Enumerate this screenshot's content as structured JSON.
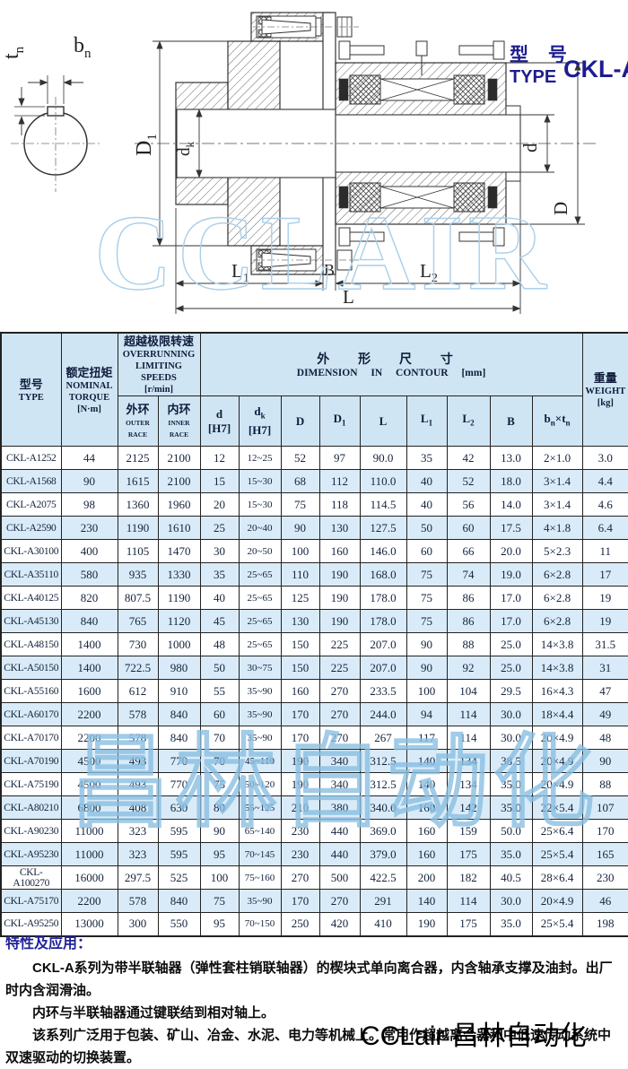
{
  "title": {
    "zh": "型 号",
    "en": "TYPE",
    "model": "CKL-A"
  },
  "drawing": {
    "watermark": "CCLAIR",
    "labels": {
      "bn": {
        "main": "b",
        "sub": "n"
      },
      "tn": {
        "main": "t",
        "sub": "n"
      },
      "D1": {
        "main": "D",
        "sub": "1"
      },
      "dk": {
        "main": "d",
        "sub": "k"
      },
      "d": {
        "main": "d"
      },
      "D": {
        "main": "D"
      },
      "L1": {
        "main": "L",
        "sub": "1"
      },
      "B": {
        "main": "B"
      },
      "L2": {
        "main": "L",
        "sub": "2"
      },
      "L": {
        "main": "L"
      }
    }
  },
  "table": {
    "header": {
      "type_zh": "型号",
      "type_en": "TYPE",
      "torque_zh": "额定扭矩",
      "torque_en1": "NOMINAL",
      "torque_en2": "TORQUE",
      "torque_unit": "[N·m]",
      "speeds_zh": "超越极限转速",
      "speeds_en1": "OVERRUNNING",
      "speeds_en2": "LIMITING SPEEDS",
      "speeds_unit": "[r/min]",
      "outer_zh": "外环",
      "outer_en": "OUTER RACE",
      "inner_zh": "内环",
      "inner_en": "INNER RACE",
      "dim_zh": "外 形 尺 寸",
      "dim_en": "DIMENSION IN CONTOUR [mm]",
      "weight_zh": "重量",
      "weight_en": "WEIGHT",
      "weight_unit": "[kg]",
      "sub": {
        "d": {
          "main": "d",
          "unit": "[H7]"
        },
        "dk": {
          "main": "d",
          "sub": "k",
          "unit": "[H7]"
        },
        "D": {
          "main": "D"
        },
        "D1": {
          "main": "D",
          "sub": "1"
        },
        "L": {
          "main": "L"
        },
        "L1": {
          "main": "L",
          "sub": "1"
        },
        "L2": {
          "main": "L",
          "sub": "2"
        },
        "B": {
          "main": "B"
        },
        "bntn": {
          "b": "b",
          "bs": "n",
          "x": "×",
          "t": "t",
          "ts": "n"
        }
      }
    },
    "rows": [
      [
        "CKL-A1252",
        "44",
        "2125",
        "2100",
        "12",
        "12~25",
        "52",
        "97",
        "90.0",
        "35",
        "42",
        "13.0",
        "2×1.0",
        "3.0"
      ],
      [
        "CKL-A1568",
        "90",
        "1615",
        "2100",
        "15",
        "15~30",
        "68",
        "112",
        "110.0",
        "40",
        "52",
        "18.0",
        "3×1.4",
        "4.4"
      ],
      [
        "CKL-A2075",
        "98",
        "1360",
        "1960",
        "20",
        "15~30",
        "75",
        "118",
        "114.5",
        "40",
        "56",
        "14.0",
        "3×1.4",
        "4.6"
      ],
      [
        "CKL-A2590",
        "230",
        "1190",
        "1610",
        "25",
        "20~40",
        "90",
        "130",
        "127.5",
        "50",
        "60",
        "17.5",
        "4×1.8",
        "6.4"
      ],
      [
        "CKL-A30100",
        "400",
        "1105",
        "1470",
        "30",
        "20~50",
        "100",
        "160",
        "146.0",
        "60",
        "66",
        "20.0",
        "5×2.3",
        "11"
      ],
      [
        "CKL-A35110",
        "580",
        "935",
        "1330",
        "35",
        "25~65",
        "110",
        "190",
        "168.0",
        "75",
        "74",
        "19.0",
        "6×2.8",
        "17"
      ],
      [
        "CKL-A40125",
        "820",
        "807.5",
        "1190",
        "40",
        "25~65",
        "125",
        "190",
        "178.0",
        "75",
        "86",
        "17.0",
        "6×2.8",
        "19"
      ],
      [
        "CKL-A45130",
        "840",
        "765",
        "1120",
        "45",
        "25~65",
        "130",
        "190",
        "178.0",
        "75",
        "86",
        "17.0",
        "6×2.8",
        "19"
      ],
      [
        "CKL-A48150",
        "1400",
        "730",
        "1000",
        "48",
        "25~65",
        "150",
        "225",
        "207.0",
        "90",
        "88",
        "25.0",
        "14×3.8",
        "31.5"
      ],
      [
        "CKL-A50150",
        "1400",
        "722.5",
        "980",
        "50",
        "30~75",
        "150",
        "225",
        "207.0",
        "90",
        "92",
        "25.0",
        "14×3.8",
        "31"
      ],
      [
        "CKL-A55160",
        "1600",
        "612",
        "910",
        "55",
        "35~90",
        "160",
        "270",
        "233.5",
        "100",
        "104",
        "29.5",
        "16×4.3",
        "47"
      ],
      [
        "CKL-A60170",
        "2200",
        "578",
        "840",
        "60",
        "35~90",
        "170",
        "270",
        "244.0",
        "94",
        "114",
        "30.0",
        "18×4.4",
        "49"
      ],
      [
        "CKL-A70170",
        "2200",
        "578",
        "840",
        "70",
        "35~90",
        "170",
        "270",
        "267",
        "117",
        "114",
        "30.0",
        "20×4.9",
        "48"
      ],
      [
        "CKL-A70190",
        "4500",
        "493",
        "770",
        "70",
        "45~110",
        "190",
        "340",
        "312.5",
        "140",
        "134",
        "38.5",
        "20×4.9",
        "90"
      ],
      [
        "CKL-A75190",
        "4500",
        "493",
        "770",
        "75",
        "50~120",
        "190",
        "340",
        "312.5",
        "140",
        "134",
        "35.0",
        "20×4.9",
        "88"
      ],
      [
        "CKL-A80210",
        "6800",
        "408",
        "630",
        "80",
        "55~125",
        "210",
        "380",
        "340.0",
        "160",
        "142",
        "35.0",
        "22×5.4",
        "107"
      ],
      [
        "CKL-A90230",
        "11000",
        "323",
        "595",
        "90",
        "65~140",
        "230",
        "440",
        "369.0",
        "160",
        "159",
        "50.0",
        "25×6.4",
        "170"
      ],
      [
        "CKL-A95230",
        "11000",
        "323",
        "595",
        "95",
        "70~145",
        "230",
        "440",
        "379.0",
        "160",
        "175",
        "35.0",
        "25×5.4",
        "165"
      ],
      [
        "CKL-A100270",
        "16000",
        "297.5",
        "525",
        "100",
        "75~160",
        "270",
        "500",
        "422.5",
        "200",
        "182",
        "40.5",
        "28×6.4",
        "230"
      ],
      [
        "CKL-A75170",
        "2200",
        "578",
        "840",
        "75",
        "35~90",
        "170",
        "270",
        "291",
        "140",
        "114",
        "30.0",
        "20×4.9",
        "46"
      ],
      [
        "CKL-A95250",
        "13000",
        "300",
        "550",
        "95",
        "70~150",
        "250",
        "420",
        "410",
        "190",
        "175",
        "35.0",
        "25×5.4",
        "198"
      ]
    ]
  },
  "notes": {
    "heading": "特性及应用：",
    "p1": "CKL-A系列为带半联轴器（弹性套柱销联轴器）的楔块式单向离合器，内含轴承支撑及油封。出厂时内含润滑油。",
    "p2": "内环与半联轴器通过键联结到相对轴上。",
    "p3": "该系列广泛用于包装、矿山、冶金、水泥、电力等机械上。常用作超越离合器和中低速传动系统中双速驱动的切换装置。"
  },
  "watermarks": {
    "drawing": "CCLAIR",
    "table": "昌林自动化",
    "bottom": "CCLair 昌林自动化"
  },
  "colors": {
    "header_bg": "#cfe5f3",
    "alt_row_bg": "#d9ebf8",
    "title_navy": "#1d1d8f",
    "watermark_blue": "#8abfe2",
    "border": "#222222"
  }
}
